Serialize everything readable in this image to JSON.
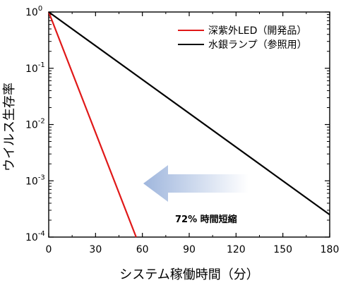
{
  "chart_data": {
    "type": "line",
    "xlabel": "システム稼働時間（分）",
    "ylabel": "ウイルス生存率",
    "xlim": [
      0,
      180
    ],
    "ylim": [
      0.0001,
      1
    ],
    "yscale": "log",
    "x_ticks": [
      "0",
      "30",
      "60",
      "90",
      "120",
      "150",
      "180"
    ],
    "y_ticks": [
      {
        "base": "10",
        "exp": "0",
        "value": 1
      },
      {
        "base": "10",
        "exp": "-1",
        "value": 0.1
      },
      {
        "base": "10",
        "exp": "-2",
        "value": 0.01
      },
      {
        "base": "10",
        "exp": "-3",
        "value": 0.001
      },
      {
        "base": "10",
        "exp": "-4",
        "value": 0.0001
      }
    ],
    "legend_position": "top-right",
    "series": [
      {
        "name": "深紫外LED（開発品）",
        "color": "#e01818",
        "x": [
          0,
          56
        ],
        "y": [
          1,
          0.0001
        ]
      },
      {
        "name": "水銀ランプ（参照用）",
        "color": "#000000",
        "x": [
          0,
          180
        ],
        "y": [
          1,
          0.00025
        ]
      }
    ],
    "annotation": {
      "text": "72%  時間短縮",
      "color": "#e01818",
      "arrow": "left",
      "arrow_color": "#9fb6dd"
    }
  }
}
